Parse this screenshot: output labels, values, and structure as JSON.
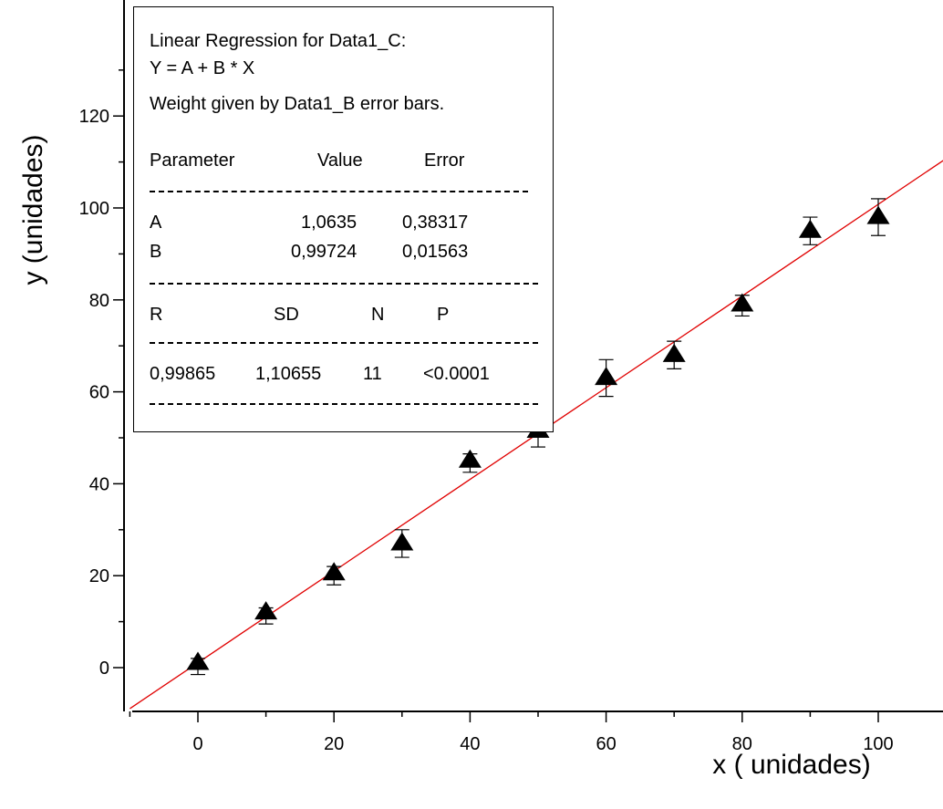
{
  "chart_data": {
    "type": "scatter",
    "title": "",
    "xlabel": "x ( unidades)",
    "ylabel": "y (unidades)",
    "xlim": [
      -10,
      112
    ],
    "ylim": [
      -9,
      127
    ],
    "x_ticks": [
      0,
      20,
      40,
      60,
      80,
      100
    ],
    "y_ticks": [
      0,
      20,
      40,
      60,
      80,
      100,
      120
    ],
    "grid": false,
    "marker": "triangle",
    "marker_color": "#000000",
    "fit_line_color": "#e00000",
    "series": [
      {
        "x": [
          0,
          10,
          20,
          30,
          40,
          50,
          60,
          70,
          80,
          90,
          100
        ],
        "y": [
          1,
          12,
          20.5,
          27,
          45,
          51.5,
          63,
          68,
          79,
          95,
          98
        ],
        "y_err_low": [
          2.5,
          2.5,
          2.5,
          3,
          2.5,
          3.5,
          4,
          3,
          2.5,
          3,
          4
        ],
        "y_err_high": [
          1,
          1,
          1.5,
          3,
          1.5,
          2.5,
          4,
          3,
          2,
          3,
          4
        ]
      }
    ],
    "fit": {
      "intercept": 1.0635,
      "slope": 0.99724
    }
  },
  "regression_box": {
    "title_line": "Linear Regression for Data1_C:",
    "equation": "Y = A + B * X",
    "weight_note": "Weight given by Data1_B error bars.",
    "param_headers": [
      "Parameter",
      "Value",
      "Error"
    ],
    "params": [
      {
        "name": "A",
        "value": "1,0635",
        "error": "0,38317"
      },
      {
        "name": "B",
        "value": "0,99724",
        "error": "0,01563"
      }
    ],
    "stat_headers": [
      "R",
      "SD",
      "N",
      "P"
    ],
    "stat_values": [
      "0,99865",
      "1,10655",
      "11",
      "<0.0001"
    ]
  }
}
